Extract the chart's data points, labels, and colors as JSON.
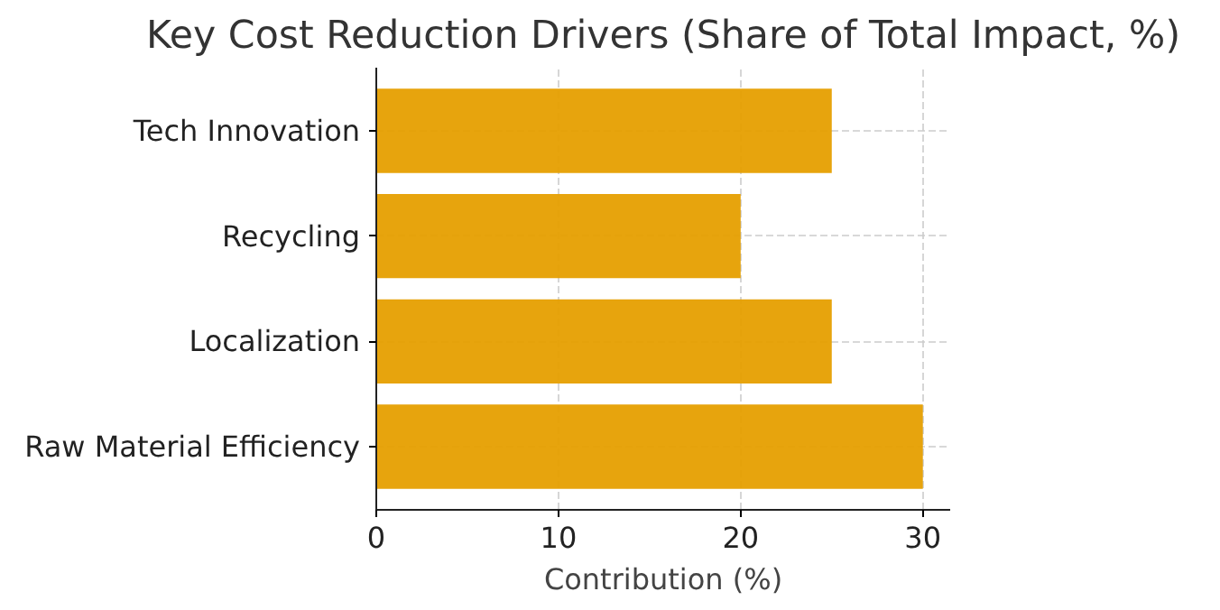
{
  "chart_data": {
    "type": "bar",
    "orientation": "horizontal",
    "title": "Key Cost Reduction Drivers (Share of Total Impact, %)",
    "xlabel": "Contribution (%)",
    "categories": [
      "Tech Innovation",
      "Recycling",
      "Localization",
      "Raw Material Efficiency"
    ],
    "values": [
      25,
      20,
      25,
      30
    ],
    "color": "#e69f00",
    "xlim": [
      0,
      31.5
    ],
    "xticks": [
      0,
      10,
      20,
      30
    ],
    "grid": true,
    "line_style": "dashed"
  }
}
